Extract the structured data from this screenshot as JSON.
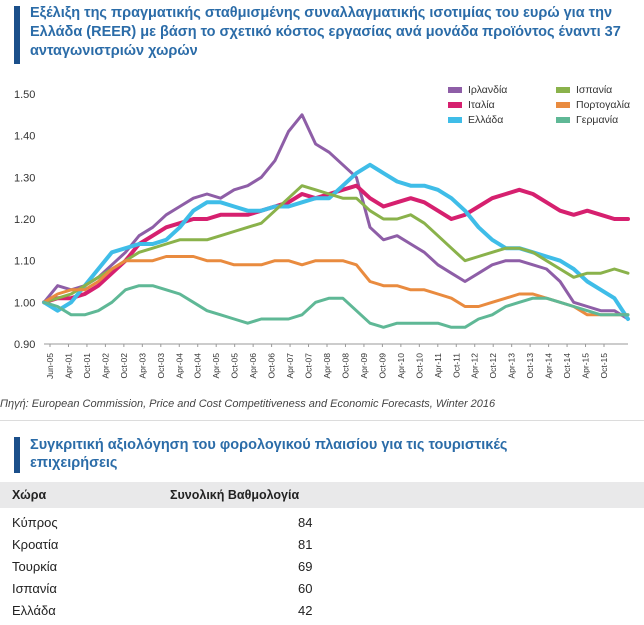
{
  "title": "Εξέλιξη της πραγματικής σταθμισμένης συναλλαγματικής ισοτιμίας του ευρώ για την Ελλάδα (REER) με βάση το σχετικό κόστος εργασίας ανά μονάδα προϊόντος έναντι 37 ανταγωνιστριών χωρών",
  "source": "Πηγή: European Commission, Price and Cost Competitiveness and Economic Forecasts, Winter 2016",
  "chart_data": {
    "type": "line",
    "title": "Εξέλιξη της πραγματικής σταθμισμένης συναλλαγματικής ισοτιμίας του ευρώ για την Ελλάδα (REER) με βάση το σχετικό κόστος εργασίας ανά μονάδα προϊόντος έναντι 37 ανταγωνιστριών χωρών",
    "ylim": [
      0.9,
      1.5
    ],
    "yticks": [
      "0.90",
      "1.00",
      "1.10",
      "1.20",
      "1.30",
      "1.40",
      "1.50"
    ],
    "xlim": [
      0,
      43
    ],
    "xtick_labels": [
      "Jun-05",
      "Apr-01",
      "Oct-01",
      "Apr-02",
      "Oct-02",
      "Apr-03",
      "Oct-03",
      "Apr-04",
      "Oct-04",
      "Apr-05",
      "Oct-05",
      "Apr-06",
      "Oct-06",
      "Apr-07",
      "Oct-07",
      "Apr-08",
      "Oct-08",
      "Apr-09",
      "Oct-09",
      "Apr-10",
      "Oct-10",
      "Apr-11",
      "Oct-11",
      "Apr-12",
      "Oct-12",
      "Apr-13",
      "Oct-13",
      "Apr-14",
      "Oct-14",
      "Apr-15",
      "Oct-15"
    ],
    "legend_position": "top-right",
    "grid": false,
    "series": [
      {
        "name": "Ιρλανδία",
        "color": "#8e5ea7",
        "x": [
          0,
          1,
          2,
          3,
          4,
          5,
          6,
          7,
          8,
          9,
          10,
          11,
          12,
          13,
          14,
          15,
          16,
          17,
          18,
          19,
          20,
          21,
          22,
          23,
          24,
          25,
          26,
          27,
          28,
          29,
          30,
          31,
          32,
          33,
          34,
          35,
          36,
          37,
          38,
          39,
          40,
          41,
          42,
          43
        ],
        "values": [
          1.0,
          1.04,
          1.03,
          1.04,
          1.06,
          1.09,
          1.12,
          1.16,
          1.18,
          1.21,
          1.23,
          1.25,
          1.26,
          1.25,
          1.27,
          1.28,
          1.3,
          1.34,
          1.41,
          1.45,
          1.38,
          1.36,
          1.33,
          1.3,
          1.18,
          1.15,
          1.16,
          1.14,
          1.12,
          1.09,
          1.07,
          1.05,
          1.07,
          1.09,
          1.1,
          1.1,
          1.09,
          1.08,
          1.05,
          1.0,
          0.99,
          0.98,
          0.98,
          0.96
        ]
      },
      {
        "name": "Ιταλία",
        "color": "#d6206f",
        "x": [
          0,
          1,
          2,
          3,
          4,
          5,
          6,
          7,
          8,
          9,
          10,
          11,
          12,
          13,
          14,
          15,
          16,
          17,
          18,
          19,
          20,
          21,
          22,
          23,
          24,
          25,
          26,
          27,
          28,
          29,
          30,
          31,
          32,
          33,
          34,
          35,
          36,
          37,
          38,
          39,
          40,
          41,
          42,
          43
        ],
        "values": [
          1.0,
          1.01,
          1.01,
          1.02,
          1.04,
          1.07,
          1.1,
          1.14,
          1.16,
          1.18,
          1.19,
          1.2,
          1.2,
          1.21,
          1.21,
          1.21,
          1.22,
          1.23,
          1.24,
          1.26,
          1.25,
          1.26,
          1.27,
          1.28,
          1.25,
          1.23,
          1.24,
          1.25,
          1.24,
          1.22,
          1.2,
          1.21,
          1.23,
          1.25,
          1.26,
          1.27,
          1.26,
          1.24,
          1.22,
          1.21,
          1.22,
          1.21,
          1.2,
          1.2
        ]
      },
      {
        "name": "Ελλάδα",
        "color": "#3fbde8",
        "x": [
          0,
          1,
          2,
          3,
          4,
          5,
          6,
          7,
          8,
          9,
          10,
          11,
          12,
          13,
          14,
          15,
          16,
          17,
          18,
          19,
          20,
          21,
          22,
          23,
          24,
          25,
          26,
          27,
          28,
          29,
          30,
          31,
          32,
          33,
          34,
          35,
          36,
          37,
          38,
          39,
          40,
          41,
          42,
          43
        ],
        "values": [
          1.0,
          0.98,
          1.0,
          1.04,
          1.08,
          1.12,
          1.13,
          1.14,
          1.14,
          1.15,
          1.18,
          1.22,
          1.24,
          1.24,
          1.23,
          1.22,
          1.22,
          1.23,
          1.23,
          1.24,
          1.25,
          1.25,
          1.28,
          1.31,
          1.33,
          1.31,
          1.29,
          1.28,
          1.28,
          1.27,
          1.25,
          1.22,
          1.18,
          1.15,
          1.13,
          1.13,
          1.12,
          1.11,
          1.1,
          1.08,
          1.05,
          1.03,
          1.01,
          0.96
        ]
      },
      {
        "name": "Ισπανία",
        "color": "#8ab24b",
        "x": [
          0,
          1,
          2,
          3,
          4,
          5,
          6,
          7,
          8,
          9,
          10,
          11,
          12,
          13,
          14,
          15,
          16,
          17,
          18,
          19,
          20,
          21,
          22,
          23,
          24,
          25,
          26,
          27,
          28,
          29,
          30,
          31,
          32,
          33,
          34,
          35,
          36,
          37,
          38,
          39,
          40,
          41,
          42,
          43
        ],
        "values": [
          1.0,
          1.01,
          1.02,
          1.04,
          1.06,
          1.08,
          1.1,
          1.12,
          1.13,
          1.14,
          1.15,
          1.15,
          1.15,
          1.16,
          1.17,
          1.18,
          1.19,
          1.22,
          1.25,
          1.28,
          1.27,
          1.26,
          1.25,
          1.25,
          1.22,
          1.2,
          1.2,
          1.21,
          1.19,
          1.16,
          1.13,
          1.1,
          1.11,
          1.12,
          1.13,
          1.13,
          1.12,
          1.1,
          1.08,
          1.06,
          1.07,
          1.07,
          1.08,
          1.07
        ]
      },
      {
        "name": "Πορτογαλία",
        "color": "#e98b3f",
        "x": [
          0,
          1,
          2,
          3,
          4,
          5,
          6,
          7,
          8,
          9,
          10,
          11,
          12,
          13,
          14,
          15,
          16,
          17,
          18,
          19,
          20,
          21,
          22,
          23,
          24,
          25,
          26,
          27,
          28,
          29,
          30,
          31,
          32,
          33,
          34,
          35,
          36,
          37,
          38,
          39,
          40,
          41,
          42,
          43
        ],
        "values": [
          1.0,
          1.02,
          1.03,
          1.03,
          1.05,
          1.08,
          1.1,
          1.1,
          1.1,
          1.11,
          1.11,
          1.11,
          1.1,
          1.1,
          1.09,
          1.09,
          1.09,
          1.1,
          1.1,
          1.09,
          1.1,
          1.1,
          1.1,
          1.09,
          1.05,
          1.04,
          1.04,
          1.03,
          1.03,
          1.02,
          1.01,
          0.99,
          0.99,
          1.0,
          1.01,
          1.02,
          1.02,
          1.01,
          1.0,
          0.99,
          0.97,
          0.97,
          0.97,
          0.97
        ]
      },
      {
        "name": "Γερμανία",
        "color": "#5fb896",
        "x": [
          0,
          1,
          2,
          3,
          4,
          5,
          6,
          7,
          8,
          9,
          10,
          11,
          12,
          13,
          14,
          15,
          16,
          17,
          18,
          19,
          20,
          21,
          22,
          23,
          24,
          25,
          26,
          27,
          28,
          29,
          30,
          31,
          32,
          33,
          34,
          35,
          36,
          37,
          38,
          39,
          40,
          41,
          42,
          43
        ],
        "values": [
          1.0,
          0.99,
          0.97,
          0.97,
          0.98,
          1.0,
          1.03,
          1.04,
          1.04,
          1.03,
          1.02,
          1.0,
          0.98,
          0.97,
          0.96,
          0.95,
          0.96,
          0.96,
          0.96,
          0.97,
          1.0,
          1.01,
          1.01,
          0.98,
          0.95,
          0.94,
          0.95,
          0.95,
          0.95,
          0.95,
          0.94,
          0.94,
          0.96,
          0.97,
          0.99,
          1.0,
          1.01,
          1.01,
          1.0,
          0.99,
          0.98,
          0.97,
          0.97,
          0.97
        ]
      }
    ]
  },
  "table": {
    "title": "Συγκριτική αξιολόγηση του φορολογικού πλαισίου για τις τουριστικές επιχειρήσεις",
    "columns": [
      "Χώρα",
      "Συνολική Βαθμολογία"
    ],
    "rows": [
      {
        "country": "Κύπρος",
        "score": "84"
      },
      {
        "country": "Κροατία",
        "score": "81"
      },
      {
        "country": "Τουρκία",
        "score": "69"
      },
      {
        "country": "Ισπανία",
        "score": "60"
      },
      {
        "country": "Ελλάδα",
        "score": "42"
      }
    ]
  }
}
